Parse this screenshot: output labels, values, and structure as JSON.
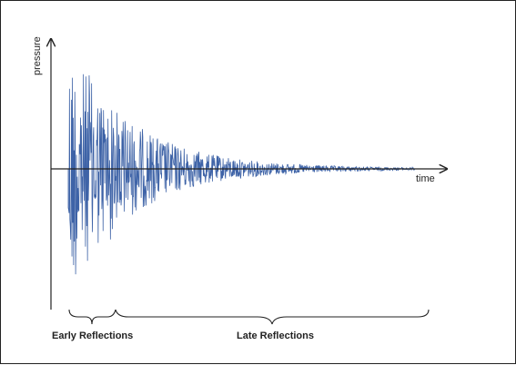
{
  "figure": {
    "y_axis_label": "pressure",
    "x_axis_label": "time",
    "regions": {
      "early_label": "Early Reflections",
      "late_label": "Late Reflections"
    },
    "colors": {
      "waveform": "#3e63a7",
      "axes": "#222222",
      "background": "#ffffff"
    },
    "signal": {
      "description_free": true,
      "onset_time_fraction": 0.0,
      "decay_shape": "exponential"
    }
  }
}
